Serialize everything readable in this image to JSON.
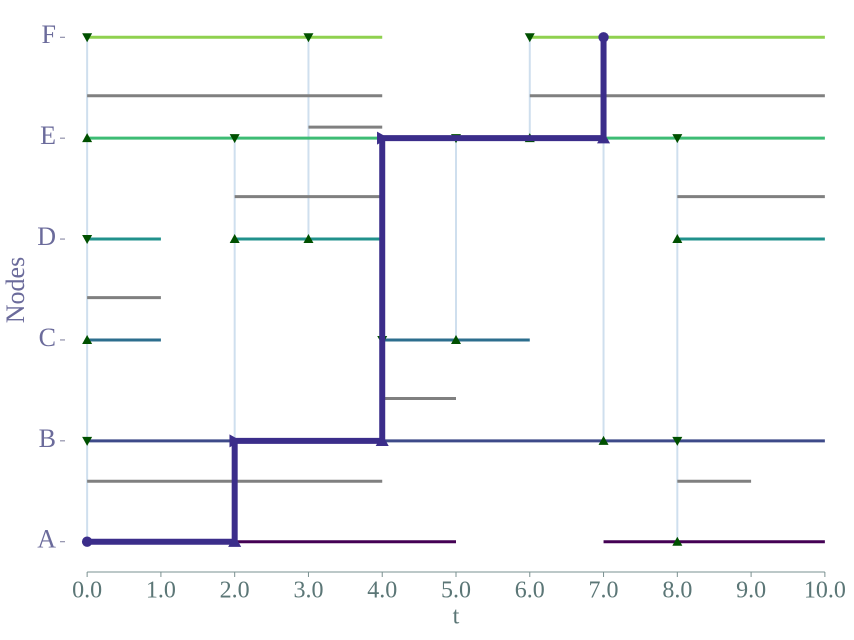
{
  "chart_data": {
    "type": "temporal_network",
    "xlabel": "t",
    "ylabel": "Nodes",
    "xlim": [
      -0.3,
      10.3
    ],
    "ylim": [
      -0.3,
      5.3
    ],
    "xticks": [
      {
        "value": 0,
        "label": "0.0"
      },
      {
        "value": 1,
        "label": "1.0"
      },
      {
        "value": 2,
        "label": "2.0"
      },
      {
        "value": 3,
        "label": "3.0"
      },
      {
        "value": 4,
        "label": "4.0"
      },
      {
        "value": 5,
        "label": "5.0"
      },
      {
        "value": 6,
        "label": "6.0"
      },
      {
        "value": 7,
        "label": "7.0"
      },
      {
        "value": 8,
        "label": "8.0"
      },
      {
        "value": 9,
        "label": "9.0"
      },
      {
        "value": 10,
        "label": "10.0"
      }
    ],
    "yticks": [
      {
        "value": 0,
        "label": "A"
      },
      {
        "value": 1,
        "label": "B"
      },
      {
        "value": 2,
        "label": "C"
      },
      {
        "value": 3,
        "label": "D"
      },
      {
        "value": 4,
        "label": "E"
      },
      {
        "value": 5,
        "label": "F"
      }
    ],
    "node_lines": [
      {
        "y": 0,
        "color": "#440154",
        "intervals": [
          [
            0,
            5
          ],
          [
            7,
            10
          ]
        ]
      },
      {
        "y": 1,
        "color": "#3e4a89",
        "intervals": [
          [
            0,
            10
          ]
        ]
      },
      {
        "y": 2,
        "color": "#2c6e8e",
        "intervals": [
          [
            0,
            1
          ],
          [
            4,
            6
          ]
        ]
      },
      {
        "y": 3,
        "color": "#21918c",
        "intervals": [
          [
            0,
            1
          ],
          [
            2,
            4
          ],
          [
            8,
            10
          ]
        ]
      },
      {
        "y": 4,
        "color": "#3dbc74",
        "intervals": [
          [
            0,
            10
          ]
        ]
      },
      {
        "y": 5,
        "color": "#8fd14f",
        "intervals": [
          [
            0,
            4
          ],
          [
            6,
            10
          ]
        ]
      }
    ],
    "gray_color": "#808080",
    "gray_segments": [
      {
        "y": 4.42,
        "t": [
          0,
          4
        ]
      },
      {
        "y": 4.42,
        "t": [
          6,
          10
        ]
      },
      {
        "y": 4.11,
        "t": [
          3,
          4
        ]
      },
      {
        "y": 3.42,
        "t": [
          2,
          4
        ]
      },
      {
        "y": 3.42,
        "t": [
          8,
          10
        ]
      },
      {
        "y": 2.42,
        "t": [
          0,
          1
        ]
      },
      {
        "y": 1.42,
        "t": [
          4,
          5
        ]
      },
      {
        "y": 0.6,
        "t": [
          0,
          4
        ]
      },
      {
        "y": 0.6,
        "t": [
          8,
          9
        ]
      }
    ],
    "edge_color": "#cfdfee",
    "edges": [
      {
        "t": 0,
        "from": 0,
        "to": 5
      },
      {
        "t": 2,
        "from": 0,
        "to": 4
      },
      {
        "t": 3,
        "from": 3,
        "to": 5
      },
      {
        "t": 4,
        "from": 1,
        "to": 4
      },
      {
        "t": 5,
        "from": 2,
        "to": 4
      },
      {
        "t": 6,
        "from": 4,
        "to": 5
      },
      {
        "t": 7,
        "from": 1,
        "to": 5
      },
      {
        "t": 8,
        "from": 0,
        "to": 4
      }
    ],
    "marker_color": "#005000",
    "markers": {
      "t": [
        0,
        0,
        0,
        0,
        0,
        2,
        2,
        3,
        3,
        4,
        5,
        5,
        6,
        6,
        7,
        8,
        8,
        8,
        8
      ],
      "y": [
        5,
        4,
        3,
        2,
        1,
        4,
        3,
        5,
        3,
        2,
        4,
        2,
        5,
        4,
        1,
        4,
        3,
        1,
        0
      ],
      "shape": [
        "v",
        "^",
        "v",
        "^",
        "v",
        "v",
        "^",
        "v",
        "^",
        "v",
        "v",
        "^",
        "v",
        "^",
        "^",
        "v",
        "^",
        "v",
        "^"
      ]
    },
    "path": {
      "color": "#3b2d8a",
      "t": [
        0,
        2,
        2,
        4,
        4,
        7,
        7
      ],
      "y": [
        0,
        0,
        1,
        1,
        4,
        4,
        5
      ],
      "shape": [
        "o",
        "^",
        ">",
        "^",
        ">",
        "^",
        "o"
      ]
    }
  }
}
